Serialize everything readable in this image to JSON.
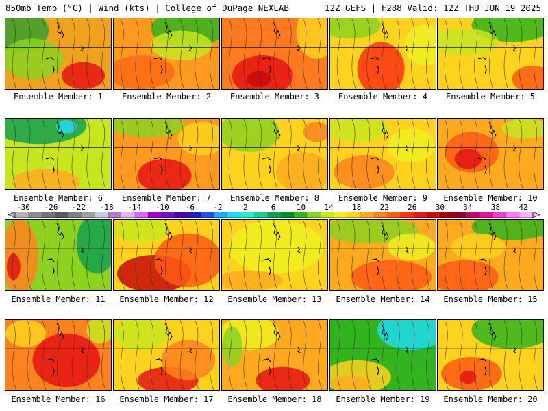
{
  "header": {
    "left": "850mb Temp (°C) | Wind (kts) | College of DuPage NEXLAB",
    "right": "12Z GEFS | F288 Valid: 12Z THU JUN 19 2025"
  },
  "colorbar": {
    "ticks": [
      "-30",
      "-26",
      "-22",
      "-18",
      "-14",
      "-10",
      "-6",
      "-2",
      "2",
      "6",
      "10",
      "14",
      "18",
      "22",
      "26",
      "30",
      "34",
      "38",
      "42"
    ],
    "colors": [
      "#b4b4b4",
      "#8c8c8c",
      "#737373",
      "#5a5a5a",
      "#7f7f7f",
      "#a0a0a0",
      "#c8c8e6",
      "#b478d2",
      "#e6b4f0",
      "#dc64ff",
      "#a000c8",
      "#6e14b4",
      "#5000a0",
      "#1e1eb4",
      "#1e50e6",
      "#1eaaff",
      "#1edcf0",
      "#28f0c8",
      "#1ec896",
      "#14a050",
      "#008c28",
      "#32b41e",
      "#8cd21e",
      "#c8e61e",
      "#f0f01e",
      "#ffd21e",
      "#ffaa1e",
      "#ff821e",
      "#ff5a14",
      "#ff3214",
      "#e61414",
      "#c80a0a",
      "#a00000",
      "#8c0028",
      "#be0a64",
      "#dc14a0",
      "#f03cd2",
      "#ff78f0",
      "#ffb4ff"
    ]
  },
  "members": [
    {
      "label": "Ensemble Member: 1",
      "base": "#f0a21e",
      "blobs": [
        [
          "#38a02e",
          18,
          18,
          46,
          32
        ],
        [
          "#8cd21e",
          40,
          60,
          45,
          30
        ],
        [
          "#e61414",
          115,
          85,
          32,
          20
        ]
      ]
    },
    {
      "label": "Ensemble Member: 2",
      "base": "#ff9a1e",
      "blobs": [
        [
          "#32b41e",
          110,
          15,
          55,
          28
        ],
        [
          "#c8e61e",
          100,
          40,
          45,
          22
        ],
        [
          "#ff6a14",
          40,
          80,
          50,
          25
        ]
      ]
    },
    {
      "label": "Ensemble Member: 3",
      "base": "#ff7a1e",
      "blobs": [
        [
          "#e61414",
          60,
          85,
          45,
          30
        ],
        [
          "#ffd21e",
          140,
          20,
          30,
          40
        ],
        [
          "#c80a0a",
          55,
          90,
          18,
          12
        ]
      ]
    },
    {
      "label": "Ensemble Member: 4",
      "base": "#ffd21e",
      "blobs": [
        [
          "#8cd21e",
          30,
          10,
          45,
          20
        ],
        [
          "#ff3214",
          75,
          75,
          35,
          40
        ],
        [
          "#f0f01e",
          140,
          40,
          30,
          30
        ]
      ]
    },
    {
      "label": "Ensemble Member: 5",
      "base": "#ffd21e",
      "blobs": [
        [
          "#32b41e",
          110,
          10,
          60,
          25
        ],
        [
          "#c8e61e",
          40,
          35,
          50,
          20
        ],
        [
          "#ff5a14",
          140,
          90,
          30,
          20
        ]
      ]
    },
    {
      "label": "Ensemble Member: 6",
      "base": "#c8e61e",
      "blobs": [
        [
          "#14a050",
          50,
          10,
          70,
          28
        ],
        [
          "#1edcf0",
          90,
          12,
          15,
          10
        ],
        [
          "#ffaa1e",
          60,
          95,
          50,
          20
        ]
      ]
    },
    {
      "label": "Ensemble Member: 7",
      "base": "#ff9a1e",
      "blobs": [
        [
          "#8cd21e",
          50,
          10,
          55,
          18
        ],
        [
          "#e61414",
          75,
          85,
          40,
          25
        ],
        [
          "#ffd21e",
          130,
          30,
          35,
          25
        ]
      ]
    },
    {
      "label": "Ensemble Member: 8",
      "base": "#ffd21e",
      "blobs": [
        [
          "#8cd21e",
          40,
          20,
          45,
          30
        ],
        [
          "#ffaa1e",
          120,
          80,
          40,
          30
        ],
        [
          "#ff821e",
          140,
          20,
          20,
          15
        ]
      ]
    },
    {
      "label": "Ensemble Member: 9",
      "base": "#ffd21e",
      "blobs": [
        [
          "#c8e61e",
          40,
          15,
          45,
          20
        ],
        [
          "#ff821e",
          50,
          80,
          45,
          25
        ],
        [
          "#f0f01e",
          120,
          40,
          35,
          25
        ]
      ]
    },
    {
      "label": "Ensemble Member: 10",
      "base": "#ffaa1e",
      "blobs": [
        [
          "#ff5a14",
          50,
          50,
          40,
          30
        ],
        [
          "#e61414",
          45,
          60,
          20,
          15
        ],
        [
          "#c8e61e",
          130,
          15,
          35,
          15
        ]
      ]
    },
    {
      "label": "Ensemble Member: 11",
      "base": "#8cd21e",
      "blobs": [
        [
          "#ff821e",
          20,
          55,
          28,
          55
        ],
        [
          "#e61414",
          12,
          70,
          10,
          20
        ],
        [
          "#14a050",
          135,
          35,
          30,
          45
        ]
      ]
    },
    {
      "label": "Ensemble Member: 12",
      "base": "#ffd21e",
      "blobs": [
        [
          "#c8e61e",
          40,
          15,
          40,
          18
        ],
        [
          "#c80a0a",
          60,
          80,
          55,
          28
        ],
        [
          "#ff5a14",
          110,
          60,
          50,
          40
        ]
      ]
    },
    {
      "label": "Ensemble Member: 13",
      "base": "#ffd21e",
      "blobs": [
        [
          "#f0f01e",
          80,
          40,
          70,
          40
        ],
        [
          "#ffaa1e",
          40,
          90,
          50,
          15
        ]
      ]
    },
    {
      "label": "Ensemble Member: 14",
      "base": "#ffaa1e",
      "blobs": [
        [
          "#8cd21e",
          60,
          15,
          70,
          20
        ],
        [
          "#ff5a14",
          90,
          85,
          60,
          25
        ],
        [
          "#f0f01e",
          120,
          40,
          35,
          20
        ]
      ]
    },
    {
      "label": "Ensemble Member: 15",
      "base": "#ffaa1e",
      "blobs": [
        [
          "#32b41e",
          110,
          10,
          60,
          20
        ],
        [
          "#ff5a14",
          40,
          85,
          50,
          25
        ],
        [
          "#ffd21e",
          60,
          40,
          40,
          20
        ]
      ]
    },
    {
      "label": "Ensemble Member: 16",
      "base": "#ff821e",
      "blobs": [
        [
          "#e61414",
          90,
          60,
          50,
          40
        ],
        [
          "#ffd21e",
          30,
          20,
          30,
          20
        ],
        [
          "#c8e61e",
          140,
          15,
          20,
          20
        ]
      ]
    },
    {
      "label": "Ensemble Member: 17",
      "base": "#ffd21e",
      "blobs": [
        [
          "#c8e61e",
          40,
          20,
          40,
          25
        ],
        [
          "#e61414",
          80,
          90,
          45,
          20
        ],
        [
          "#ff821e",
          110,
          60,
          40,
          30
        ]
      ]
    },
    {
      "label": "Ensemble Member: 18",
      "base": "#ffaa1e",
      "blobs": [
        [
          "#f0f01e",
          40,
          20,
          45,
          25
        ],
        [
          "#e61414",
          90,
          90,
          40,
          20
        ],
        [
          "#8cd21e",
          15,
          40,
          15,
          30
        ]
      ]
    },
    {
      "label": "Ensemble Member: 19",
      "base": "#32b41e",
      "blobs": [
        [
          "#1edcf0",
          120,
          15,
          50,
          30
        ],
        [
          "#ffd21e",
          40,
          85,
          50,
          25
        ],
        [
          "#ffaa1e",
          30,
          95,
          30,
          12
        ]
      ]
    },
    {
      "label": "Ensemble Member: 20",
      "base": "#ffd21e",
      "blobs": [
        [
          "#32b41e",
          110,
          15,
          60,
          28
        ],
        [
          "#ff5a14",
          50,
          80,
          45,
          25
        ],
        [
          "#e61414",
          45,
          85,
          12,
          10
        ]
      ]
    }
  ]
}
